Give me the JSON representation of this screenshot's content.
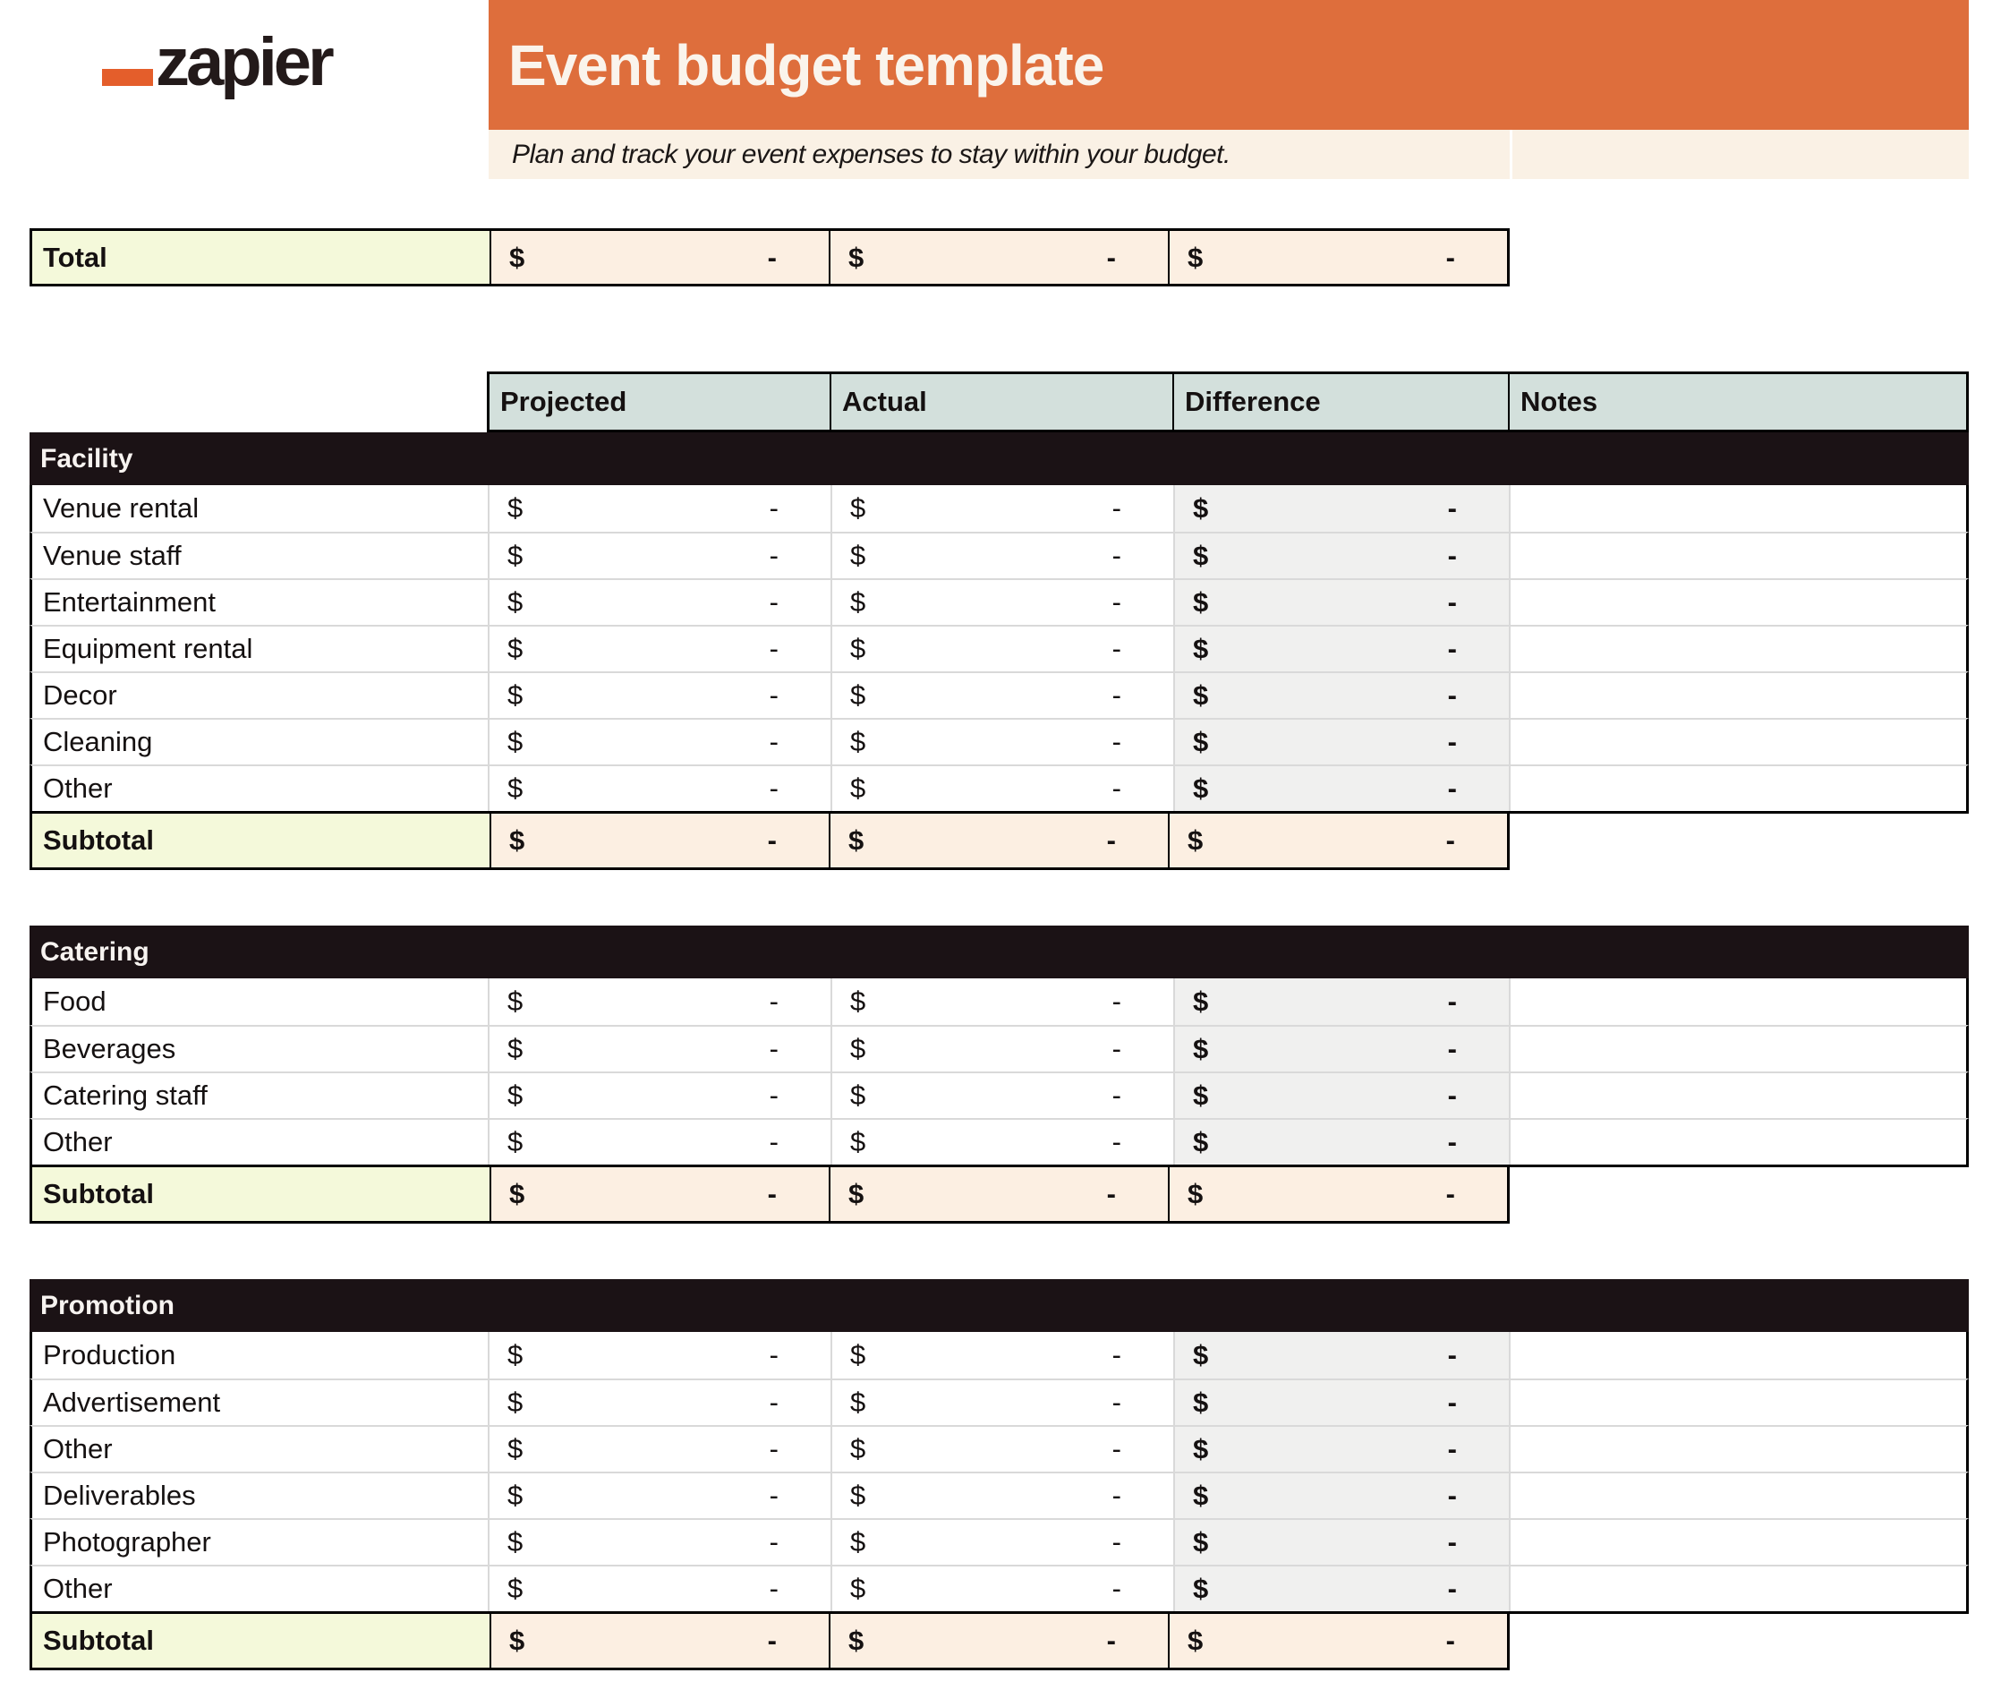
{
  "logo": {
    "brand": "zapier"
  },
  "header": {
    "title": "Event budget template",
    "subtitle": "Plan and track your event expenses to stay within your budget."
  },
  "money": {
    "currency": "$",
    "empty_value": "-"
  },
  "total_row": {
    "label": "Total",
    "cells": [
      {
        "column": "projected",
        "currency": "$",
        "value": "-"
      },
      {
        "column": "actual",
        "currency": "$",
        "value": "-"
      },
      {
        "column": "difference",
        "currency": "$",
        "value": "-"
      }
    ]
  },
  "columns": [
    {
      "id": "projected",
      "label": "Projected"
    },
    {
      "id": "actual",
      "label": "Actual"
    },
    {
      "id": "difference",
      "label": "Difference"
    },
    {
      "id": "notes",
      "label": "Notes"
    }
  ],
  "sections": [
    {
      "name": "Facility",
      "rows": [
        "Venue rental",
        "Venue staff",
        "Entertainment",
        "Equipment rental",
        "Decor",
        "Cleaning",
        "Other"
      ],
      "subtotal_label": "Subtotal"
    },
    {
      "name": "Catering",
      "rows": [
        "Food",
        "Beverages",
        "Catering staff",
        "Other"
      ],
      "subtotal_label": "Subtotal"
    },
    {
      "name": "Promotion",
      "rows": [
        "Production",
        "Advertisement",
        "Other",
        "Deliverables",
        "Photographer",
        "Other"
      ],
      "subtotal_label": "Subtotal"
    }
  ],
  "colors": {
    "banner_orange": "#DE6E3C",
    "logo_orange": "#E45E2B",
    "subtitle_bg": "#FAF1E5",
    "column_header_bg": "#D3E0DC",
    "section_header_bg": "#1B1215",
    "label_highlight_bg": "#F4F9DA",
    "amount_highlight_bg": "#FCEFE2",
    "difference_cell_bg": "#F0F0EF",
    "grid_line": "#D9D9D9"
  }
}
